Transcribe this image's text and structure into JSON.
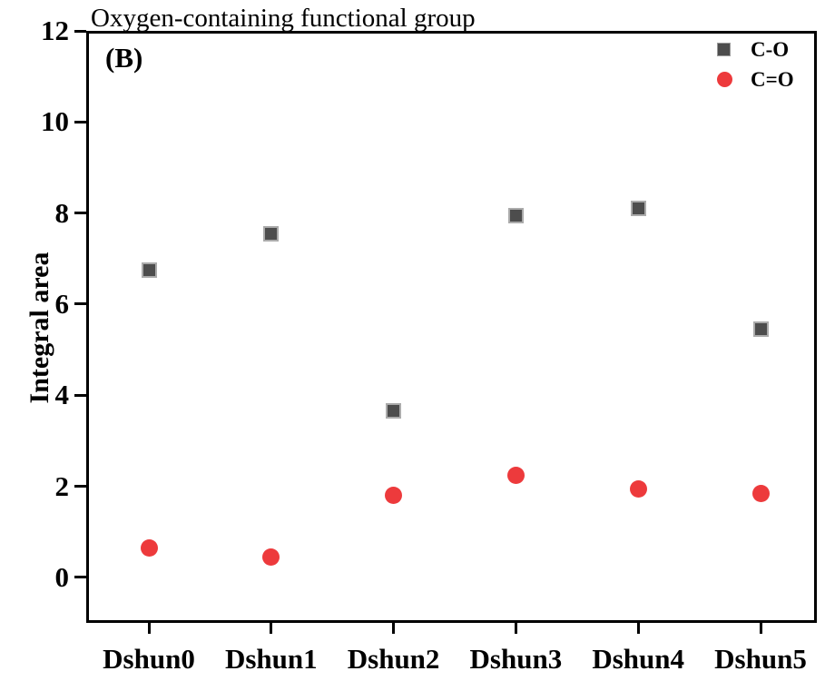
{
  "figure": {
    "panel_label": "(B)",
    "title": "Oxygen-containing functional group",
    "ylabel": "Integral area"
  },
  "chart_data": {
    "type": "scatter",
    "title": "Oxygen-containing functional group",
    "xlabel": "",
    "ylabel": "Integral area",
    "categories": [
      "Dshun0",
      "Dshun1",
      "Dshun2",
      "Dshun3",
      "Dshun4",
      "Dshun5"
    ],
    "series": [
      {
        "name": "C-O",
        "marker": "square",
        "color": "#4d4d4d",
        "values": [
          6.75,
          7.55,
          3.65,
          7.95,
          8.1,
          5.45
        ]
      },
      {
        "name": "C=O",
        "marker": "circle",
        "color": "#ed3a3c",
        "values": [
          0.65,
          0.45,
          1.8,
          2.25,
          1.95,
          1.85
        ]
      }
    ],
    "ylim": [
      -1,
      12
    ],
    "yticks": [
      0,
      2,
      4,
      6,
      8,
      10,
      12
    ],
    "grid": false,
    "legend_position": "top-right",
    "axis_color": "#000000",
    "background_color": "#ffffff"
  }
}
